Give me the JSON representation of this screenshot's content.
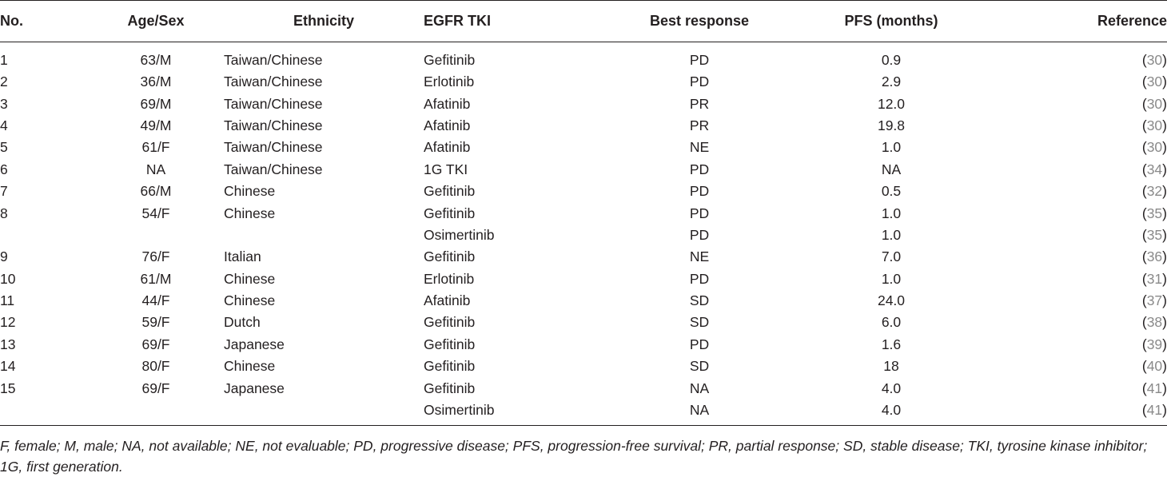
{
  "table": {
    "headers": {
      "no": "No.",
      "age_sex": "Age/Sex",
      "ethnicity": "Ethnicity",
      "egfr_tki": "EGFR TKI",
      "best_response": "Best response",
      "pfs": "PFS (months)",
      "reference": "Reference"
    },
    "rows": [
      {
        "no": "1",
        "age_sex": "63/M",
        "ethnicity": "Taiwan/Chinese",
        "egfr_tki": "Gefitinib",
        "best_response": "PD",
        "pfs": "0.9",
        "reference": "30"
      },
      {
        "no": "2",
        "age_sex": "36/M",
        "ethnicity": "Taiwan/Chinese",
        "egfr_tki": "Erlotinib",
        "best_response": "PD",
        "pfs": "2.9",
        "reference": "30"
      },
      {
        "no": "3",
        "age_sex": "69/M",
        "ethnicity": "Taiwan/Chinese",
        "egfr_tki": "Afatinib",
        "best_response": "PR",
        "pfs": "12.0",
        "reference": "30"
      },
      {
        "no": "4",
        "age_sex": "49/M",
        "ethnicity": "Taiwan/Chinese",
        "egfr_tki": "Afatinib",
        "best_response": "PR",
        "pfs": "19.8",
        "reference": "30"
      },
      {
        "no": "5",
        "age_sex": "61/F",
        "ethnicity": "Taiwan/Chinese",
        "egfr_tki": "Afatinib",
        "best_response": "NE",
        "pfs": "1.0",
        "reference": "30"
      },
      {
        "no": "6",
        "age_sex": "NA",
        "ethnicity": "Taiwan/Chinese",
        "egfr_tki": "1G TKI",
        "best_response": "PD",
        "pfs": "NA",
        "reference": "34"
      },
      {
        "no": "7",
        "age_sex": "66/M",
        "ethnicity": "Chinese",
        "egfr_tki": "Gefitinib",
        "best_response": "PD",
        "pfs": "0.5",
        "reference": "32"
      },
      {
        "no": "8",
        "age_sex": "54/F",
        "ethnicity": "Chinese",
        "egfr_tki": "Gefitinib",
        "best_response": "PD",
        "pfs": "1.0",
        "reference": "35"
      },
      {
        "no": "",
        "age_sex": "",
        "ethnicity": "",
        "egfr_tki": "Osimertinib",
        "best_response": "PD",
        "pfs": "1.0",
        "reference": "35"
      },
      {
        "no": "9",
        "age_sex": "76/F",
        "ethnicity": "Italian",
        "egfr_tki": "Gefitinib",
        "best_response": "NE",
        "pfs": "7.0",
        "reference": "36"
      },
      {
        "no": "10",
        "age_sex": "61/M",
        "ethnicity": "Chinese",
        "egfr_tki": "Erlotinib",
        "best_response": "PD",
        "pfs": "1.0",
        "reference": "31"
      },
      {
        "no": "11",
        "age_sex": "44/F",
        "ethnicity": "Chinese",
        "egfr_tki": "Afatinib",
        "best_response": "SD",
        "pfs": "24.0",
        "reference": "37"
      },
      {
        "no": "12",
        "age_sex": "59/F",
        "ethnicity": "Dutch",
        "egfr_tki": "Gefitinib",
        "best_response": "SD",
        "pfs": "6.0",
        "reference": "38"
      },
      {
        "no": "13",
        "age_sex": "69/F",
        "ethnicity": "Japanese",
        "egfr_tki": "Gefitinib",
        "best_response": "PD",
        "pfs": "1.6",
        "reference": "39"
      },
      {
        "no": "14",
        "age_sex": "80/F",
        "ethnicity": "Chinese",
        "egfr_tki": "Gefitinib",
        "best_response": "SD",
        "pfs": "18",
        "reference": "40"
      },
      {
        "no": "15",
        "age_sex": "69/F",
        "ethnicity": "Japanese",
        "egfr_tki": "Gefitinib",
        "best_response": "NA",
        "pfs": "4.0",
        "reference": "41"
      },
      {
        "no": "",
        "age_sex": "",
        "ethnicity": "",
        "egfr_tki": "Osimertinib",
        "best_response": "NA",
        "pfs": "4.0",
        "reference": "41"
      }
    ]
  },
  "footnote": "F, female; M, male; NA, not available; NE, not evaluable; PD, progressive disease; PFS, progression-free survival; PR, partial response; SD, stable disease; TKI, tyrosine kinase inhibitor; 1G, first generation.",
  "colors": {
    "text": "#231f20",
    "reference_link": "#8a8a8a",
    "rule": "#231f20"
  }
}
